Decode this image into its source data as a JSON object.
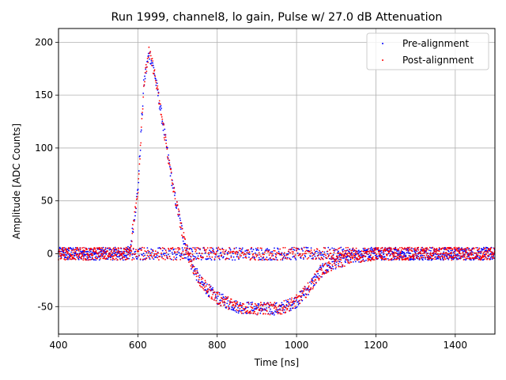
{
  "chart_data": {
    "type": "scatter",
    "title": "Run 1999, channel8, lo gain, Pulse w/ 27.0 dB Attenuation",
    "xlabel": "Time [ns]",
    "ylabel": "Amplitude [ADC Counts]",
    "xlim": [
      400,
      1500
    ],
    "ylim": [
      -76,
      213
    ],
    "xticks": [
      400,
      600,
      800,
      1000,
      1200,
      1400
    ],
    "yticks": [
      -50,
      0,
      50,
      100,
      150,
      200
    ],
    "grid": true,
    "legend_position": "top-right",
    "colors": {
      "pre": "#0000ff",
      "post": "#ff0000"
    },
    "series": [
      {
        "name": "Pre-alignment",
        "color": "#0000ff",
        "description_points": [
          [
            400,
            0
          ],
          [
            570,
            0
          ],
          [
            580,
            2
          ],
          [
            600,
            60
          ],
          [
            615,
            160
          ],
          [
            628,
            190
          ],
          [
            640,
            175
          ],
          [
            660,
            130
          ],
          [
            690,
            60
          ],
          [
            715,
            15
          ],
          [
            735,
            -10
          ],
          [
            760,
            -28
          ],
          [
            800,
            -42
          ],
          [
            850,
            -50
          ],
          [
            900,
            -52
          ],
          [
            960,
            -52
          ],
          [
            1000,
            -45
          ],
          [
            1030,
            -33
          ],
          [
            1060,
            -17
          ],
          [
            1100,
            -8
          ],
          [
            1150,
            -3
          ],
          [
            1200,
            0
          ],
          [
            1500,
            0
          ]
        ],
        "baseline": 0,
        "noise": 6
      },
      {
        "name": "Post-alignment",
        "color": "#ff0000",
        "description_points": [
          [
            400,
            0
          ],
          [
            570,
            0
          ],
          [
            580,
            2
          ],
          [
            600,
            60
          ],
          [
            615,
            160
          ],
          [
            628,
            190
          ],
          [
            640,
            175
          ],
          [
            660,
            130
          ],
          [
            690,
            60
          ],
          [
            715,
            15
          ],
          [
            735,
            -10
          ],
          [
            760,
            -28
          ],
          [
            800,
            -42
          ],
          [
            850,
            -50
          ],
          [
            900,
            -52
          ],
          [
            960,
            -52
          ],
          [
            1000,
            -45
          ],
          [
            1030,
            -33
          ],
          [
            1060,
            -17
          ],
          [
            1100,
            -8
          ],
          [
            1150,
            -3
          ],
          [
            1200,
            0
          ],
          [
            1500,
            0
          ]
        ],
        "baseline": 0,
        "noise": 6
      }
    ]
  }
}
